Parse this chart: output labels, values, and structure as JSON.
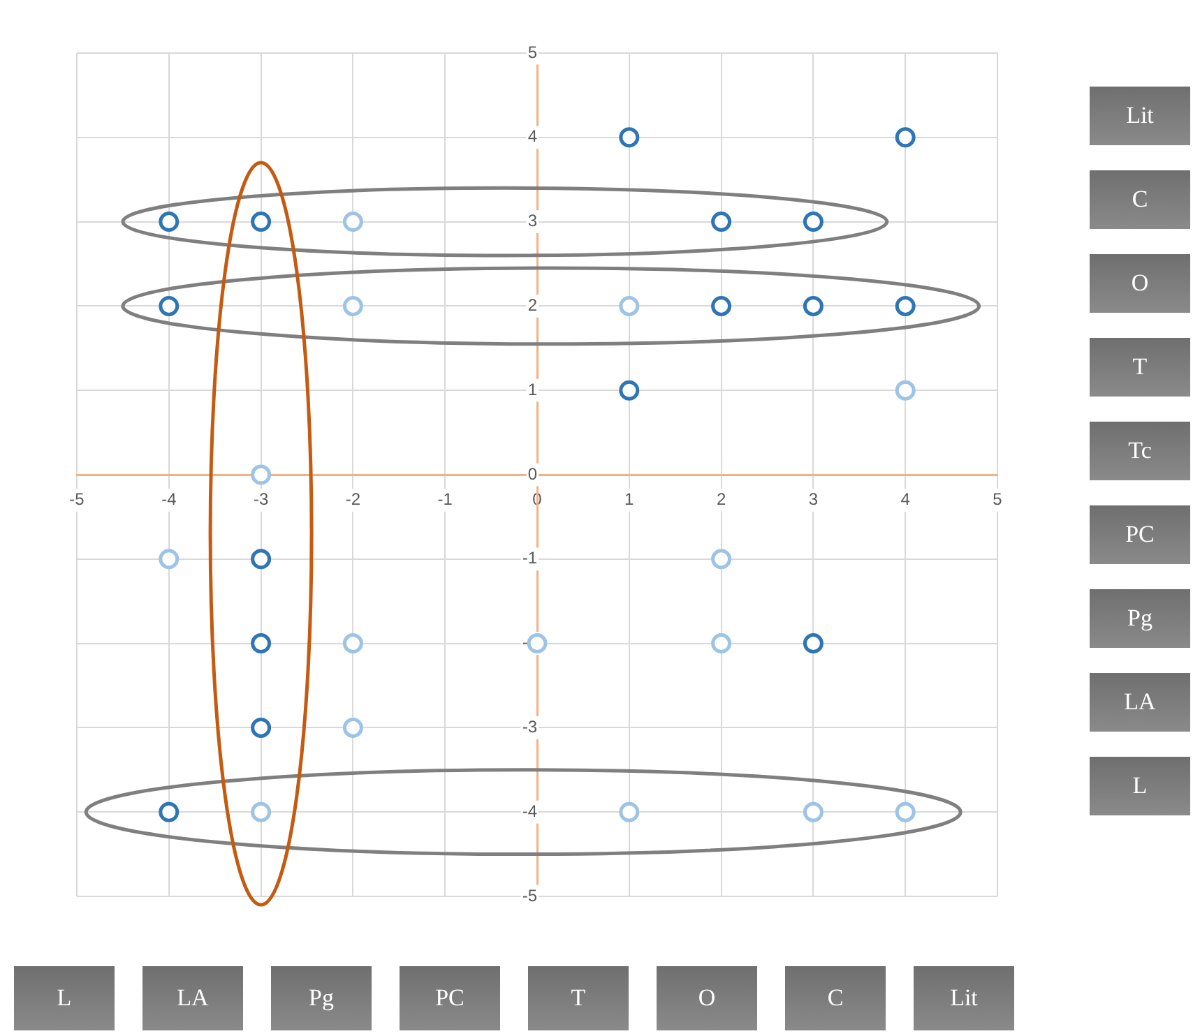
{
  "chart_data": {
    "type": "scatter",
    "xlim": [
      -5,
      5
    ],
    "ylim": [
      -5,
      5
    ],
    "xticks": [
      -5,
      -4,
      -3,
      -2,
      -1,
      0,
      1,
      2,
      3,
      4,
      5
    ],
    "yticks": [
      -5,
      -4,
      -3,
      -2,
      -1,
      0,
      1,
      2,
      3,
      4,
      5
    ],
    "grid": true,
    "marker": "circle",
    "series": [
      {
        "color": "#2e75b6",
        "x": [
          4,
          1,
          -4,
          -3,
          2,
          3,
          -4,
          2,
          3,
          4,
          1,
          -3,
          -3,
          3,
          -3,
          -4
        ],
        "values": [
          4,
          4,
          3,
          3,
          3,
          3,
          2,
          2,
          2,
          2,
          1,
          -1,
          -2,
          -2,
          -3,
          -4
        ]
      },
      {
        "color": "#9dc3e6",
        "x": [
          -2,
          -2,
          1,
          4,
          -3,
          -4,
          2,
          -2,
          0,
          2,
          -2,
          -3,
          1,
          3,
          4
        ],
        "values": [
          3,
          2,
          2,
          1,
          0,
          -1,
          -1,
          -2,
          -2,
          -2,
          -3,
          -4,
          -4,
          -4,
          -4
        ]
      }
    ],
    "annotations": [
      "Lit",
      "C",
      "O",
      "T",
      "Tc",
      "PC",
      "Pg",
      "LA",
      "L",
      "L",
      "LA",
      "Pg",
      "PC",
      "T",
      "O",
      "C",
      "Lit"
    ]
  }
}
